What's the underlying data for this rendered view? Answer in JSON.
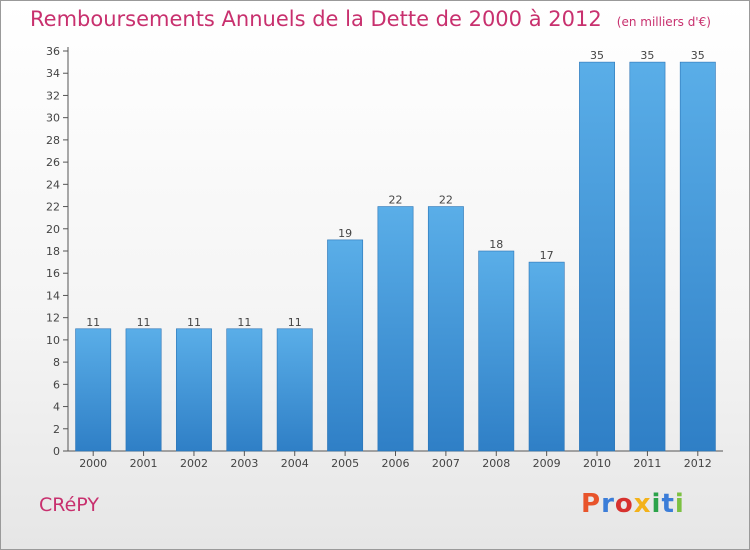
{
  "chart_data": {
    "type": "bar",
    "title": "Remboursements Annuels de la Dette de 2000 à 2012",
    "subtitle": "(en milliers d'€)",
    "categories": [
      "2000",
      "2001",
      "2002",
      "2003",
      "2004",
      "2005",
      "2006",
      "2007",
      "2008",
      "2009",
      "2010",
      "2011",
      "2012"
    ],
    "values": [
      11,
      11,
      11,
      11,
      11,
      19,
      22,
      22,
      18,
      17,
      35,
      35,
      35
    ],
    "ylim": [
      0,
      36
    ],
    "yticks": [
      0,
      2,
      4,
      6,
      8,
      10,
      12,
      14,
      16,
      18,
      20,
      22,
      24,
      26,
      28,
      30,
      32,
      34,
      36
    ],
    "grid": false,
    "bar_color": "#4a9de0"
  },
  "footer": {
    "town": "CRéPY",
    "logo": "Proxiti"
  },
  "colors": {
    "title": "#c8306e",
    "axis": "#555555",
    "logo": [
      "#e8542b",
      "#3b7dd8",
      "#d7322f",
      "#f3b21a",
      "#2ba34a",
      "#3b7dd8",
      "#7cc142"
    ]
  }
}
